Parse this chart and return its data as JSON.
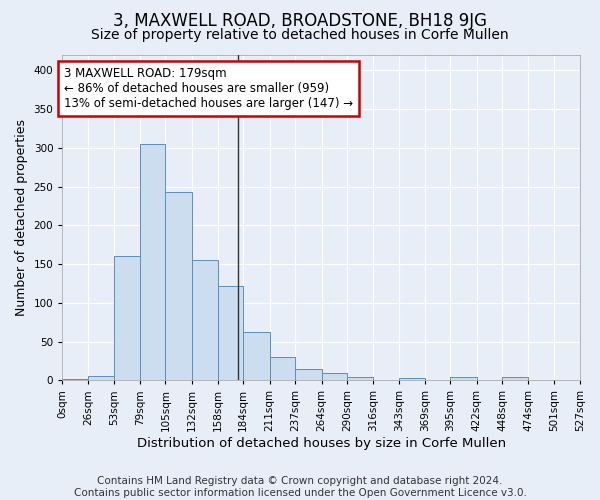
{
  "title": "3, MAXWELL ROAD, BROADSTONE, BH18 9JG",
  "subtitle": "Size of property relative to detached houses in Corfe Mullen",
  "xlabel": "Distribution of detached houses by size in Corfe Mullen",
  "ylabel": "Number of detached properties",
  "footer_line1": "Contains HM Land Registry data © Crown copyright and database right 2024.",
  "footer_line2": "Contains public sector information licensed under the Open Government Licence v3.0.",
  "bin_edges": [
    0,
    26,
    53,
    79,
    105,
    132,
    158,
    184,
    211,
    237,
    264,
    290,
    316,
    343,
    369,
    395,
    422,
    448,
    474,
    501,
    527
  ],
  "bar_heights": [
    2,
    5,
    160,
    305,
    243,
    155,
    122,
    62,
    30,
    15,
    9,
    4,
    0,
    3,
    0,
    4,
    0,
    4,
    0,
    0
  ],
  "bar_face_color": "#ccddef",
  "bar_edge_color": "#5a8fc0",
  "bg_color": "#e8eef8",
  "plot_bg_color": "#e8eef8",
  "grid_color": "#ffffff",
  "annotation_line1": "3 MAXWELL ROAD: 179sqm",
  "annotation_line2": "← 86% of detached houses are smaller (959)",
  "annotation_line3": "13% of semi-detached houses are larger (147) →",
  "vline_x": 179,
  "ylim": [
    0,
    420
  ],
  "yticks": [
    0,
    50,
    100,
    150,
    200,
    250,
    300,
    350,
    400
  ],
  "annotation_box_facecolor": "#ffffff",
  "annotation_box_edgecolor": "#cc0000",
  "title_fontsize": 12,
  "subtitle_fontsize": 10,
  "xlabel_fontsize": 9.5,
  "ylabel_fontsize": 9,
  "tick_fontsize": 7.5,
  "footer_fontsize": 7.5,
  "annotation_fontsize": 8.5
}
